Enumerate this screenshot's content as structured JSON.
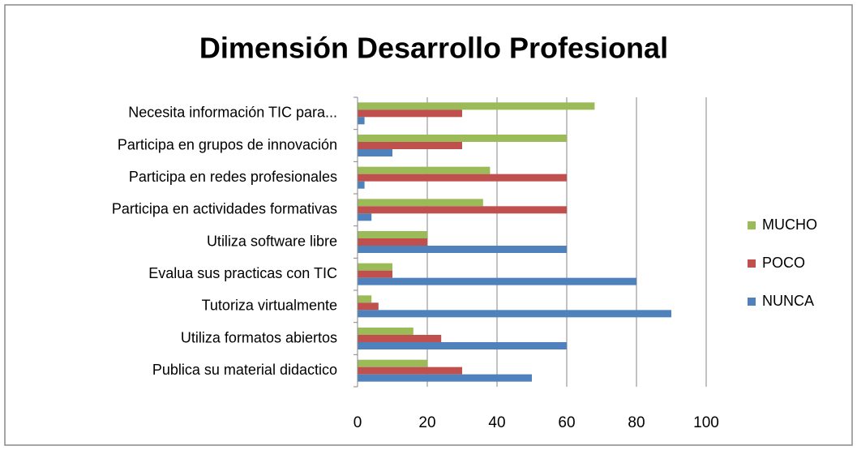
{
  "chart_data": {
    "type": "bar",
    "orientation": "horizontal",
    "title": "Dimensión Desarrollo Profesional",
    "categories": [
      "Necesita información TIC para...",
      "Participa en grupos de innovación",
      "Participa en redes profesionales",
      "Participa en actividades formativas",
      "Utiliza software libre",
      "Evalua sus practicas con TIC",
      "Tutoriza virtualmente",
      "Utiliza formatos abiertos",
      "Publica su material didactico"
    ],
    "series": [
      {
        "name": "MUCHO",
        "color": "#9bbb59",
        "values": [
          68,
          60,
          38,
          36,
          20,
          10,
          4,
          16,
          20
        ]
      },
      {
        "name": "POCO",
        "color": "#c0504d",
        "values": [
          30,
          30,
          60,
          60,
          20,
          10,
          6,
          24,
          30
        ]
      },
      {
        "name": "NUNCA",
        "color": "#4f81bd",
        "values": [
          2,
          10,
          2,
          4,
          60,
          80,
          90,
          60,
          50
        ]
      }
    ],
    "xlim": [
      0,
      100
    ],
    "xticks": [
      0,
      20,
      40,
      60,
      80,
      100
    ],
    "grid": true,
    "legend": "right"
  }
}
